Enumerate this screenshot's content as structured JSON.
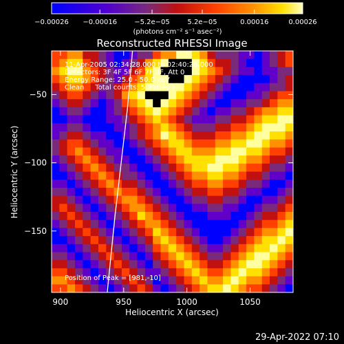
{
  "colorbar": {
    "ticks": [
      "-0.00026",
      "-0.00016",
      "-5.2e-05",
      "5.2e-05",
      "0.00016",
      "0.00026"
    ],
    "tick_values": [
      -0.00026,
      -0.00016,
      -5.2e-05,
      5.2e-05,
      0.00016,
      0.00026
    ],
    "range": [
      -0.00026,
      0.00026
    ],
    "unit_label": "(photons cm⁻² s⁻¹ asec⁻²)"
  },
  "chart_data": {
    "type": "heatmap",
    "title": "Reconstructed RHESSI Image",
    "xlabel": "Heliocentric X (arcsec)",
    "ylabel": "Heliocentric Y (arcsec)",
    "xlim": [
      893,
      1084
    ],
    "ylim": [
      -195,
      -18
    ],
    "xticks": [
      "900",
      "950",
      "1000",
      "1050"
    ],
    "xtick_values": [
      900,
      950,
      1000,
      1050
    ],
    "yticks": [
      "-50",
      "-100",
      "-150"
    ],
    "ytick_values": [
      -50,
      -100,
      -150
    ],
    "limb_curve": [
      [
        957,
        -18
      ],
      [
        953,
        -60
      ],
      [
        948,
        -100
      ],
      [
        943,
        -140
      ],
      [
        937,
        -195
      ]
    ],
    "annotations": [
      "11-Apr-2005 02:34:28.000 to 02:40:28.000",
      "Detectors: 3F 4F 5F 6F 7F 8F, Att 0",
      "Energy Range: 25.0 - 50.0 keV",
      "Clean     Total counts: 5.99E+03"
    ],
    "peak_label": "Position of Peak = [981,-10]",
    "colormap": [
      "#0000ff",
      "#6000c8",
      "#7a2a7a",
      "#c01010",
      "#ff4000",
      "#ff9000",
      "#ffe000",
      "#ffffa0"
    ],
    "grid_rows": [
      "4455332100122455776532221101234",
      "4566432101235678887643321001234",
      "5677543211346788997654321101122",
      "4566543213456778876543210000123",
      "3455432234567777765432100011223",
      "2344321235678887654321000112344",
      "1233210124567876543210011223455",
      "0122100123456765432101122345566",
      "0011000112345654321112233456677",
      "1122100011234565432223344567776",
      "1233211001234576543334455677665",
      "2344321100123456654445566776554",
      "2345432110012345665556677665443",
      "1234543211001234566667776554332",
      "0123454322100123456677665443221",
      "0012345432210012345566554332110",
      "1101234543321001234455443221001",
      "2210123454432100123344332110012",
      "3321012345543210012233221001123",
      "3432101234554321001122110012234",
      "2343210123465432100011100123345",
      "1234321012345543210000001234456",
      "0123432101234654321000012345567",
      "0012343210123565432100123456676",
      "1101234321012456543211234566765",
      "2210123432101345654322345677654",
      "3321012343210234565433456776543",
      "4432101234321123456544567665432",
      "5543210123432012345655676554321",
      "4454321012343101234566765443210"
    ]
  },
  "footer": {
    "date": "29-Apr-2022 07:10"
  }
}
